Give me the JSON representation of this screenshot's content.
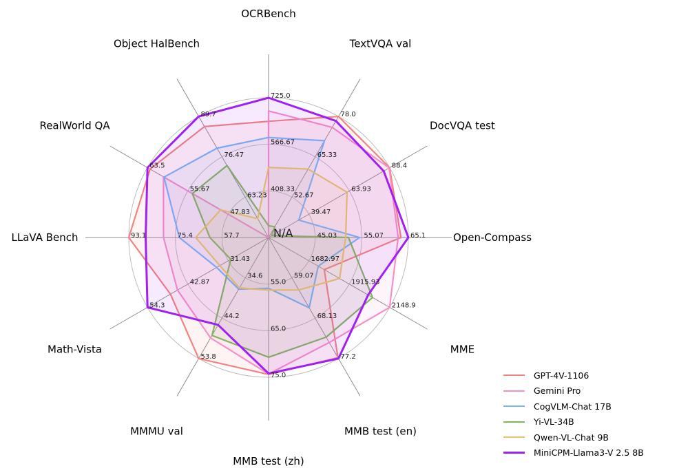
{
  "chart_data": {
    "type": "radar",
    "title": "",
    "center_label": "N/A",
    "axes": [
      {
        "label": "OCRBench",
        "ticks": [
          "408.33",
          "566.67",
          "725.0"
        ]
      },
      {
        "label": "TextVQA val",
        "ticks": [
          "52.67",
          "65.33",
          "78.0"
        ]
      },
      {
        "label": "DocVQA test",
        "ticks": [
          "39.47",
          "63.93",
          "88.4"
        ]
      },
      {
        "label": "Open-Compass",
        "ticks": [
          "45.03",
          "55.07",
          "65.1"
        ]
      },
      {
        "label": "MME",
        "ticks": [
          "1682.97",
          "1915.93",
          "2148.9"
        ]
      },
      {
        "label": "MMB test (en)",
        "ticks": [
          "59.07",
          "68.13",
          "77.2"
        ]
      },
      {
        "label": "MMB test (zh)",
        "ticks": [
          "55.0",
          "65.0",
          "75.0"
        ]
      },
      {
        "label": "MMMU val",
        "ticks": [
          "34.6",
          "44.2",
          "53.8"
        ]
      },
      {
        "label": "Math-Vista",
        "ticks": [
          "31.43",
          "42.87",
          "54.3"
        ]
      },
      {
        "label": "LLaVA Bench",
        "ticks": [
          "57.7",
          "75.4",
          "93.1"
        ]
      },
      {
        "label": "RealWorld QA",
        "ticks": [
          "47.83",
          "55.67",
          "63.5"
        ]
      },
      {
        "label": "Object HalBench",
        "ticks": [
          "63.23",
          "76.47",
          "89.7"
        ]
      }
    ],
    "series": [
      {
        "name": "GPT-4V-1106",
        "color": "#F4827F",
        "values": [
          645,
          78.0,
          88.4,
          63.5,
          1771.5,
          77.0,
          74.4,
          53.8,
          47.8,
          93.1,
          63.0,
          86.4
        ]
      },
      {
        "name": "Gemini Pro",
        "color": "#F78FC9",
        "values": [
          680,
          74.6,
          88.1,
          62.9,
          2148.9,
          73.6,
          74.3,
          48.9,
          45.8,
          79.9,
          60.4,
          null
        ]
      },
      {
        "name": "CogVLM-Chat 17B",
        "color": "#7CB5F1",
        "values": [
          590,
          70.4,
          33.3,
          54.6,
          1736.6,
          65.8,
          55.9,
          37.3,
          34.7,
          73.9,
          60.3,
          79.3
        ]
      },
      {
        "name": "Yi-VL-34B",
        "color": "#83B45E",
        "values": [
          290,
          43.4,
          16.9,
          52.2,
          2050.2,
          72.4,
          70.7,
          48.3,
          30.7,
          62.3,
          54.8,
          73.6
        ]
      },
      {
        "name": "Qwen-VL-Chat 9B",
        "color": "#E6C46C",
        "values": [
          488,
          61.5,
          62.6,
          51.6,
          1860.0,
          61.8,
          56.3,
          37.0,
          33.8,
          67.7,
          49.3,
          56.2
        ]
      },
      {
        "name": "MiniCPM-Llama3-V 2.5 8B",
        "color": "#A020F0",
        "values": [
          725,
          76.6,
          84.8,
          65.1,
          2024.6,
          77.2,
          74.2,
          45.8,
          54.3,
          86.7,
          63.5,
          89.7
        ]
      }
    ],
    "layout": {
      "legend_position": "lower right",
      "grid": true,
      "grid_levels": 3
    }
  }
}
